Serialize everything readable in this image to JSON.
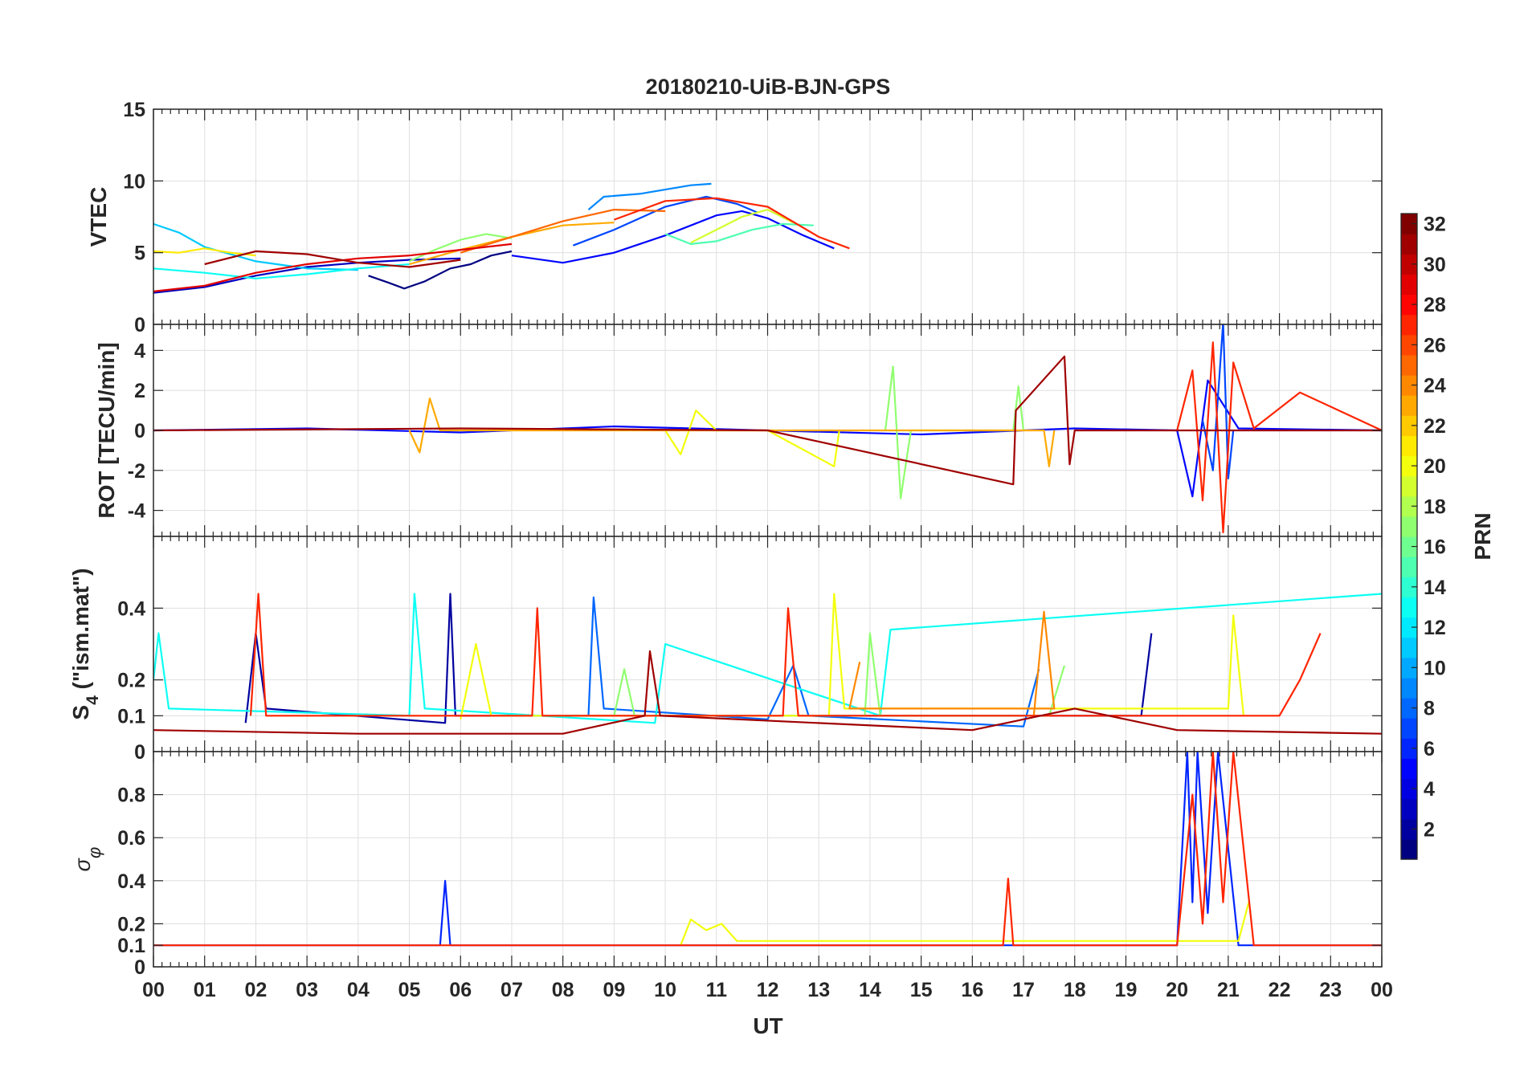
{
  "chart_data": [
    {
      "panel": "vtec",
      "type": "line",
      "title": "20180210-UiB-BJN-GPS",
      "ylabel": "VTEC",
      "ylim": [
        0,
        15
      ],
      "yticks": [
        0,
        5,
        10,
        15
      ],
      "ytick_labels": [
        "0",
        "5",
        "10",
        "15"
      ],
      "grid": true,
      "series": [
        {
          "prn": 1,
          "x": [
            4.2,
            4.6,
            4.9,
            5.3,
            5.8,
            6.2,
            6.6,
            7.0
          ],
          "y": [
            3.4,
            2.9,
            2.5,
            3.0,
            3.9,
            4.2,
            4.8,
            5.1
          ]
        },
        {
          "prn": 3,
          "x": [
            0.0,
            1.0,
            2.0,
            3.0,
            4.0,
            5.0,
            6.0
          ],
          "y": [
            2.2,
            2.6,
            3.4,
            4.0,
            4.3,
            4.5,
            4.6
          ]
        },
        {
          "prn": 5,
          "x": [
            7.0,
            8.0,
            9.0,
            10.0,
            11.0,
            11.5,
            12.0,
            12.7,
            13.3
          ],
          "y": [
            4.8,
            4.3,
            5.0,
            6.2,
            7.6,
            7.9,
            7.4,
            6.2,
            5.3
          ]
        },
        {
          "prn": 7,
          "x": [
            8.2,
            9.0,
            10.0,
            10.8,
            11.4,
            11.8
          ],
          "y": [
            5.5,
            6.6,
            8.2,
            8.9,
            8.4,
            7.8
          ]
        },
        {
          "prn": 9,
          "x": [
            8.5,
            8.8,
            9.5,
            10.0,
            10.5,
            10.9
          ],
          "y": [
            8.0,
            8.9,
            9.1,
            9.4,
            9.7,
            9.8
          ]
        },
        {
          "prn": 11,
          "x": [
            0.0,
            0.5,
            1.0,
            2.0,
            3.0,
            4.0
          ],
          "y": [
            7.0,
            6.4,
            5.4,
            4.4,
            3.9,
            3.8
          ]
        },
        {
          "prn": 13,
          "x": [
            0.0,
            1.0,
            2.0,
            3.0,
            4.0,
            5.0
          ],
          "y": [
            3.9,
            3.6,
            3.2,
            3.5,
            3.9,
            4.2
          ]
        },
        {
          "prn": 15,
          "x": [
            10.0,
            10.5,
            11.0,
            11.7,
            12.3,
            12.9
          ],
          "y": [
            6.3,
            5.6,
            5.8,
            6.6,
            7.0,
            6.9
          ]
        },
        {
          "prn": 17,
          "x": [
            5.0,
            5.5,
            6.0,
            6.5,
            7.0
          ],
          "y": [
            4.4,
            5.2,
            5.9,
            6.3,
            6.0
          ]
        },
        {
          "prn": 19,
          "x": [
            10.5,
            11.0,
            11.5,
            12.0,
            12.5
          ],
          "y": [
            5.7,
            6.6,
            7.5,
            8.0,
            7.1
          ]
        },
        {
          "prn": 21,
          "x": [
            0.0,
            0.5,
            1.0,
            1.5,
            2.0
          ],
          "y": [
            5.1,
            5.0,
            5.3,
            5.0,
            4.8
          ]
        },
        {
          "prn": 23,
          "x": [
            5.0,
            6.0,
            7.0,
            8.0,
            9.0
          ],
          "y": [
            4.2,
            5.2,
            6.1,
            6.9,
            7.1
          ]
        },
        {
          "prn": 25,
          "x": [
            6.0,
            7.0,
            8.0,
            9.0,
            10.0
          ],
          "y": [
            5.0,
            6.1,
            7.2,
            8.0,
            7.9
          ]
        },
        {
          "prn": 27,
          "x": [
            9.0,
            10.0,
            11.0,
            12.0,
            13.0,
            13.6
          ],
          "y": [
            7.3,
            8.6,
            8.8,
            8.2,
            6.1,
            5.3
          ]
        },
        {
          "prn": 29,
          "x": [
            0.0,
            1.0,
            2.0,
            3.0,
            4.0,
            5.0,
            6.0,
            7.0
          ],
          "y": [
            2.3,
            2.7,
            3.6,
            4.2,
            4.6,
            4.8,
            5.2,
            5.6
          ]
        },
        {
          "prn": 31,
          "x": [
            1.0,
            2.0,
            3.0,
            4.0,
            5.0,
            6.0
          ],
          "y": [
            4.2,
            5.1,
            4.9,
            4.3,
            4.0,
            4.5
          ]
        }
      ]
    },
    {
      "panel": "rot",
      "type": "line",
      "ylabel": "ROT [TECU/min]",
      "ylim": [
        -5.3,
        5.3
      ],
      "yticks": [
        -4,
        -2,
        0,
        2,
        4
      ],
      "ytick_labels": [
        "-4",
        "-2",
        "0",
        "2",
        "4"
      ],
      "grid": true,
      "series": [
        {
          "prn": 5,
          "x": [
            0.0,
            3.0,
            6.0,
            9.0,
            12.0,
            15.0,
            18.0,
            20.0,
            20.3,
            20.6,
            21.2,
            24.0
          ],
          "y": [
            0.0,
            0.1,
            -0.1,
            0.2,
            0.0,
            -0.2,
            0.1,
            0.0,
            -3.3,
            2.5,
            0.1,
            0.0
          ]
        },
        {
          "prn": 7,
          "x": [
            20.5,
            20.7,
            20.9,
            21.0,
            21.1
          ],
          "y": [
            0.5,
            -2.0,
            5.4,
            -2.4,
            0.0
          ]
        },
        {
          "prn": 17,
          "x": [
            14.3,
            14.45,
            14.6,
            14.8,
            16.8,
            16.9,
            17.0
          ],
          "y": [
            0.0,
            3.2,
            -3.4,
            0.0,
            0.0,
            2.2,
            0.0
          ]
        },
        {
          "prn": 20,
          "x": [
            10.0,
            10.3,
            10.6,
            11.0,
            12.0,
            13.3,
            13.4
          ],
          "y": [
            0.0,
            -1.2,
            1.0,
            0.0,
            0.0,
            -1.8,
            0.0
          ]
        },
        {
          "prn": 23,
          "x": [
            5.0,
            5.2,
            5.4,
            5.6,
            17.4,
            17.5,
            17.6
          ],
          "y": [
            0.0,
            -1.1,
            1.6,
            0.0,
            0.0,
            -1.8,
            0.0
          ]
        },
        {
          "prn": 27,
          "x": [
            20.0,
            20.3,
            20.5,
            20.7,
            20.9,
            21.1,
            21.5,
            22.4,
            24.0
          ],
          "y": [
            0.0,
            3.0,
            -3.5,
            4.4,
            -5.1,
            3.4,
            0.1,
            1.9,
            0.0
          ]
        },
        {
          "prn": 31,
          "x": [
            0.0,
            6.0,
            12.0,
            16.8,
            16.85,
            17.8,
            17.9,
            18.0,
            24.0
          ],
          "y": [
            0.0,
            0.1,
            0.0,
            -2.7,
            1.0,
            3.7,
            -1.7,
            0.0,
            0.0
          ]
        }
      ]
    },
    {
      "panel": "s4",
      "type": "line",
      "ylabel": "S4 (\"ism.mat\")",
      "ylim": [
        0,
        0.6
      ],
      "yticks": [
        0,
        0.1,
        0.2,
        0.4
      ],
      "ytick_labels": [
        "0",
        "0.1",
        "0.2",
        "0.4"
      ],
      "grid": true,
      "series": [
        {
          "prn": 2,
          "x": [
            1.8,
            2.0,
            2.2,
            5.7,
            5.8,
            5.9,
            19.3,
            19.5
          ],
          "y": [
            0.08,
            0.33,
            0.12,
            0.08,
            0.44,
            0.1,
            0.1,
            0.33
          ]
        },
        {
          "prn": 8,
          "x": [
            8.5,
            8.6,
            8.8,
            12.0,
            12.5,
            12.8,
            17.0,
            17.3
          ],
          "y": [
            0.1,
            0.43,
            0.12,
            0.09,
            0.24,
            0.1,
            0.07,
            0.23
          ]
        },
        {
          "prn": 13,
          "x": [
            0.0,
            0.1,
            0.3,
            5.0,
            5.1,
            5.3,
            9.8,
            10.0,
            14.2,
            14.4,
            24.0
          ],
          "y": [
            0.2,
            0.33,
            0.12,
            0.1,
            0.44,
            0.12,
            0.08,
            0.3,
            0.1,
            0.34,
            0.44
          ]
        },
        {
          "prn": 17,
          "x": [
            9.0,
            9.2,
            9.4,
            13.9,
            14.0,
            14.2,
            17.5,
            17.8
          ],
          "y": [
            0.1,
            0.23,
            0.1,
            0.1,
            0.33,
            0.1,
            0.1,
            0.24
          ]
        },
        {
          "prn": 20,
          "x": [
            6.0,
            6.3,
            6.6,
            13.2,
            13.3,
            13.5,
            21.0,
            21.1,
            21.3
          ],
          "y": [
            0.09,
            0.3,
            0.1,
            0.1,
            0.44,
            0.12,
            0.12,
            0.38,
            0.1
          ]
        },
        {
          "prn": 24,
          "x": [
            17.2,
            17.4,
            17.6,
            13.6,
            13.8
          ],
          "y": [
            0.1,
            0.39,
            0.12,
            0.12,
            0.25
          ]
        },
        {
          "prn": 27,
          "x": [
            1.9,
            2.05,
            2.2,
            7.4,
            7.5,
            7.6,
            12.3,
            12.4,
            12.6,
            22.0,
            22.4,
            22.8
          ],
          "y": [
            0.1,
            0.44,
            0.1,
            0.1,
            0.4,
            0.1,
            0.1,
            0.4,
            0.1,
            0.1,
            0.2,
            0.33
          ]
        },
        {
          "prn": 31,
          "x": [
            0.0,
            4.0,
            8.0,
            9.6,
            9.7,
            9.9,
            16.0,
            18.0,
            20.0,
            24.0
          ],
          "y": [
            0.06,
            0.05,
            0.05,
            0.1,
            0.28,
            0.1,
            0.06,
            0.12,
            0.06,
            0.05
          ]
        }
      ]
    },
    {
      "panel": "sigma_phi",
      "type": "line",
      "ylabel": "σφ",
      "ylim": [
        0,
        1.0
      ],
      "yticks": [
        0,
        0.1,
        0.2,
        0.4,
        0.6,
        0.8
      ],
      "ytick_labels": [
        "0",
        "0.1",
        "0.2",
        "0.4",
        "0.6",
        "0.8"
      ],
      "grid": true,
      "series": [
        {
          "prn": 6,
          "x": [
            0.0,
            5.6,
            5.7,
            5.8,
            20.0,
            20.2,
            20.3,
            20.4,
            20.6,
            20.8,
            21.2,
            24.0
          ],
          "y": [
            0.1,
            0.1,
            0.4,
            0.1,
            0.1,
            1.0,
            0.3,
            1.0,
            0.25,
            1.0,
            0.1,
            0.1
          ]
        },
        {
          "prn": 20,
          "x": [
            10.3,
            10.5,
            10.8,
            11.1,
            11.4,
            21.2,
            21.4
          ],
          "y": [
            0.1,
            0.22,
            0.17,
            0.2,
            0.12,
            0.12,
            0.3
          ]
        },
        {
          "prn": 27,
          "x": [
            0.0,
            6.0,
            12.0,
            16.6,
            16.7,
            16.8,
            20.0,
            20.3,
            20.5,
            20.7,
            20.9,
            21.1,
            21.5,
            24.0
          ],
          "y": [
            0.1,
            0.1,
            0.1,
            0.1,
            0.41,
            0.1,
            0.1,
            0.8,
            0.2,
            1.0,
            0.3,
            1.0,
            0.1,
            0.1
          ]
        }
      ]
    }
  ],
  "shared_x": {
    "xlabel": "UT",
    "xlim": [
      0,
      24
    ],
    "tick_labels": [
      "00",
      "01",
      "02",
      "03",
      "04",
      "05",
      "06",
      "07",
      "08",
      "09",
      "10",
      "11",
      "12",
      "13",
      "14",
      "15",
      "16",
      "17",
      "18",
      "19",
      "20",
      "21",
      "22",
      "23",
      "00"
    ]
  },
  "colorbar": {
    "label": "PRN",
    "range": [
      1,
      32
    ],
    "ticks": [
      2,
      4,
      6,
      8,
      10,
      12,
      14,
      16,
      18,
      20,
      22,
      24,
      26,
      28,
      30,
      32
    ],
    "tick_labels": [
      "2",
      "4",
      "6",
      "8",
      "10",
      "12",
      "14",
      "16",
      "18",
      "20",
      "22",
      "24",
      "26",
      "28",
      "30",
      "32"
    ],
    "colormap": "jet"
  },
  "colors": {
    "axis": "#262626",
    "grid": "#dfdfdf",
    "background": "#ffffff"
  }
}
